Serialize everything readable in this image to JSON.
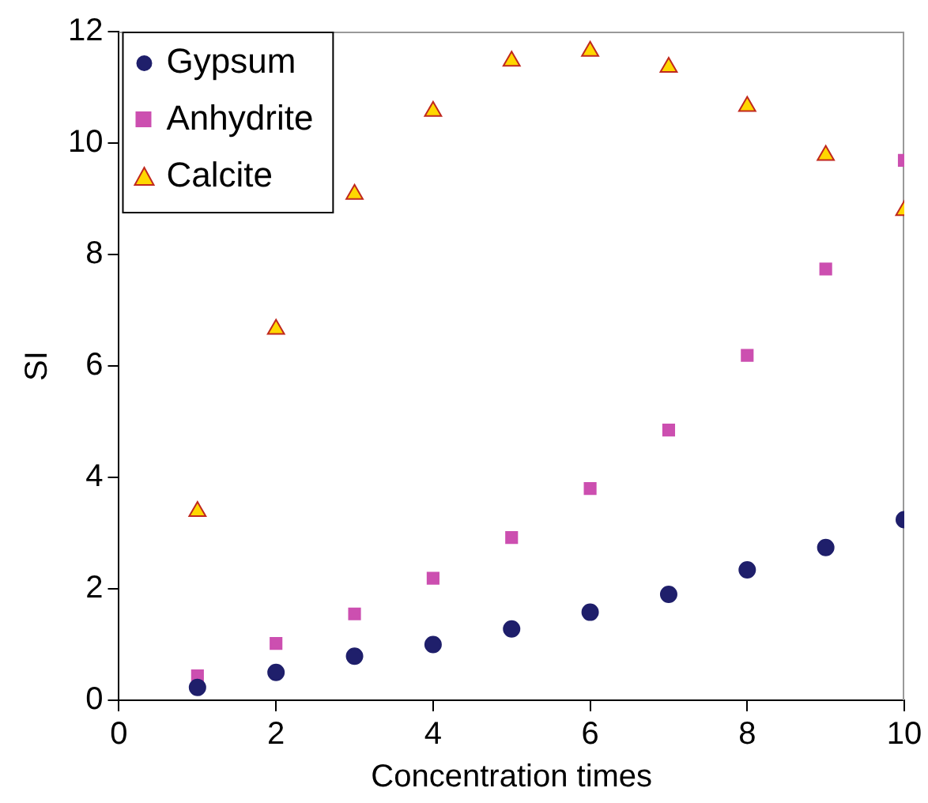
{
  "chart_data": {
    "type": "scatter",
    "xlabel": "Concentration times",
    "ylabel": "SI",
    "x": [
      1,
      2,
      3,
      4,
      5,
      6,
      7,
      8,
      9,
      10
    ],
    "series": [
      {
        "name": "Gypsum",
        "color": "#1f1f6b",
        "marker": "circle",
        "values": [
          0.23,
          0.5,
          0.79,
          1.0,
          1.28,
          1.58,
          1.9,
          2.34,
          2.74,
          3.24
        ]
      },
      {
        "name": "Anhydrite",
        "color": "#cc4fb0",
        "marker": "square",
        "values": [
          0.44,
          1.02,
          1.55,
          2.19,
          2.92,
          3.8,
          4.85,
          6.19,
          7.74,
          9.69
        ]
      },
      {
        "name": "Calcite",
        "color": "#ffd700",
        "marker": "triangle",
        "values": [
          3.39,
          6.66,
          9.08,
          10.57,
          11.47,
          11.65,
          11.36,
          10.66,
          9.78,
          8.79
        ]
      }
    ],
    "xlim": [
      0,
      10
    ],
    "xticks": [
      0,
      2,
      4,
      6,
      8,
      10
    ],
    "ylim": [
      0,
      12
    ],
    "yticks": [
      0,
      2,
      4,
      6,
      8,
      10,
      12
    ],
    "grid": false,
    "legend": "top left"
  }
}
